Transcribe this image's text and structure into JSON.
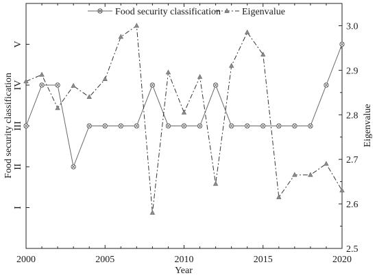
{
  "chart_data": {
    "type": "line",
    "xlabel": "Year",
    "ylabel_left": "Food security classification",
    "ylabel_right": "Eigenvalue",
    "x": [
      2000,
      2001,
      2002,
      2003,
      2004,
      2005,
      2006,
      2007,
      2008,
      2009,
      2010,
      2011,
      2012,
      2013,
      2014,
      2015,
      2016,
      2017,
      2018,
      2019,
      2020
    ],
    "xlim": [
      2000,
      2020
    ],
    "x_ticks": [
      2000,
      2005,
      2010,
      2015,
      2020
    ],
    "y_left_ticks": [
      "I",
      "II",
      "III",
      "IV",
      "V"
    ],
    "y_left_lim": [
      0,
      6
    ],
    "y_right_lim": [
      2.5,
      3.05
    ],
    "y_right_ticks": [
      2.5,
      2.6,
      2.7,
      2.8,
      2.9,
      3.0
    ],
    "y_right_tick_labels": [
      "2.5",
      "2.6",
      "2.7",
      "2.8",
      "2.9",
      "3.0"
    ],
    "legend_position": "top",
    "series": [
      {
        "name": "Food security classification",
        "axis": "left",
        "style": "solid",
        "marker": "circle-cross",
        "color": "#666666",
        "values": [
          3,
          4,
          4,
          2,
          3,
          3,
          3,
          3,
          4,
          3,
          3,
          3,
          4,
          3,
          3,
          3,
          3,
          3,
          3,
          4,
          5
        ]
      },
      {
        "name": "Eigenvalue",
        "axis": "right",
        "style": "dashdot",
        "marker": "triangle",
        "color": "#333333",
        "values": [
          2.875,
          2.89,
          2.815,
          2.865,
          2.84,
          2.88,
          2.975,
          3.0,
          2.58,
          2.895,
          2.805,
          2.885,
          2.645,
          2.91,
          2.985,
          2.935,
          2.615,
          2.665,
          2.665,
          2.69,
          2.63
        ]
      }
    ]
  }
}
